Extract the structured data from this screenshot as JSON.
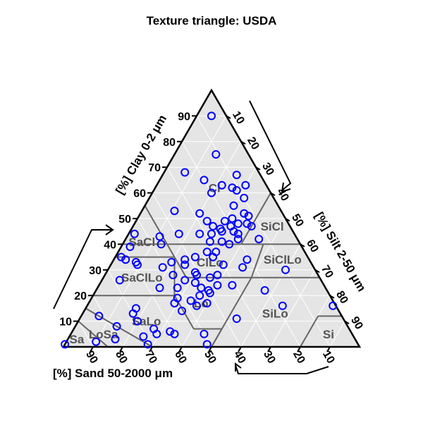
{
  "chart_data": {
    "type": "scatter",
    "subtype": "ternary",
    "title": "Texture triangle: USDA",
    "axes": {
      "clay": {
        "label": "[%] Clay 0-2 μm",
        "ticks": [
          10,
          20,
          30,
          40,
          50,
          60,
          70,
          80,
          90
        ]
      },
      "silt": {
        "label": "[%] Silt 2-50 μm",
        "ticks": [
          10,
          20,
          30,
          40,
          50,
          60,
          70,
          80,
          90
        ]
      },
      "sand": {
        "label": "[%] Sand 50-2000 μm",
        "ticks": [
          10,
          20,
          30,
          40,
          50,
          60,
          70,
          80,
          90
        ]
      }
    },
    "grid": true,
    "colors": {
      "background": "#e5e5e5",
      "grid": "#ffffff",
      "class_boundaries": "#666666",
      "class_labels": "#555555",
      "points": "#0000ff",
      "frame": "#000000"
    },
    "classes": [
      {
        "label": "Cl",
        "clay": 62,
        "silt": 20
      },
      {
        "label": "SiCl",
        "clay": 47,
        "silt": 47
      },
      {
        "label": "SaCl",
        "clay": 41,
        "silt": 6
      },
      {
        "label": "SiClLo",
        "clay": 34,
        "silt": 57
      },
      {
        "label": "ClLo",
        "clay": 33,
        "silt": 33
      },
      {
        "label": "SaClLo",
        "clay": 27,
        "silt": 13
      },
      {
        "label": "Lo",
        "clay": 17,
        "silt": 38
      },
      {
        "label": "SiLo",
        "clay": 13,
        "silt": 65
      },
      {
        "label": "SaLo",
        "clay": 10,
        "silt": 23
      },
      {
        "label": "LoSa",
        "clay": 5,
        "silt": 11
      },
      {
        "label": "Sa",
        "clay": 3,
        "silt": 3
      },
      {
        "label": "Si",
        "clay": 5,
        "silt": 87
      }
    ],
    "points": [
      {
        "clay": 90,
        "silt": 5
      },
      {
        "clay": 75,
        "silt": 14
      },
      {
        "clay": 68,
        "silt": 7
      },
      {
        "clay": 65,
        "silt": 15
      },
      {
        "clay": 63,
        "silt": 22
      },
      {
        "clay": 67,
        "silt": 25
      },
      {
        "clay": 63,
        "silt": 30
      },
      {
        "clay": 62,
        "silt": 26
      },
      {
        "clay": 60,
        "silt": 20
      },
      {
        "clay": 61,
        "silt": 28
      },
      {
        "clay": 58,
        "silt": 32
      },
      {
        "clay": 55,
        "silt": 30
      },
      {
        "clay": 53,
        "silt": 11
      },
      {
        "clay": 52,
        "silt": 20
      },
      {
        "clay": 50,
        "silt": 32
      },
      {
        "clay": 52,
        "silt": 35
      },
      {
        "clay": 51,
        "silt": 37
      },
      {
        "clay": 49,
        "silt": 30
      },
      {
        "clay": 49,
        "silt": 24
      },
      {
        "clay": 48,
        "silt": 35
      },
      {
        "clay": 48,
        "silt": 38
      },
      {
        "clay": 47,
        "silt": 27
      },
      {
        "clay": 47,
        "silt": 40
      },
      {
        "clay": 47,
        "silt": 33
      },
      {
        "clay": 46,
        "silt": 30
      },
      {
        "clay": 45,
        "silt": 31
      },
      {
        "clay": 45,
        "silt": 35
      },
      {
        "clay": 44,
        "silt": 37
      },
      {
        "clay": 44,
        "silt": 28
      },
      {
        "clay": 44,
        "silt": 24
      },
      {
        "clay": 44,
        "silt": 17
      },
      {
        "clay": 44,
        "silt": 2
      },
      {
        "clay": 43,
        "silt": 11
      },
      {
        "clay": 42,
        "silt": 45
      },
      {
        "clay": 42,
        "silt": 38
      },
      {
        "clay": 41,
        "silt": 33
      },
      {
        "clay": 41,
        "silt": 29
      },
      {
        "clay": 40,
        "silt": 36
      },
      {
        "clay": 40,
        "silt": 13
      },
      {
        "clay": 39,
        "silt": 3
      },
      {
        "clay": 37,
        "silt": 33
      },
      {
        "clay": 37,
        "silt": 30
      },
      {
        "clay": 35,
        "silt": 27
      },
      {
        "clay": 35,
        "silt": 33
      },
      {
        "clay": 35,
        "silt": 2
      },
      {
        "clay": 34,
        "silt": 4
      },
      {
        "clay": 34,
        "silt": 24
      },
      {
        "clay": 34,
        "silt": 45
      },
      {
        "clay": 33,
        "silt": 8
      },
      {
        "clay": 33,
        "silt": 20
      },
      {
        "clay": 32,
        "silt": 9
      },
      {
        "clay": 32,
        "silt": 25
      },
      {
        "clay": 32,
        "silt": 38
      },
      {
        "clay": 31,
        "silt": 18
      },
      {
        "clay": 31,
        "silt": 45
      },
      {
        "clay": 30,
        "silt": 60
      },
      {
        "clay": 29,
        "silt": 30
      },
      {
        "clay": 28,
        "silt": 23
      },
      {
        "clay": 28,
        "silt": 38
      },
      {
        "clay": 28,
        "silt": 31
      },
      {
        "clay": 27,
        "silt": 36
      },
      {
        "clay": 26,
        "silt": 6
      },
      {
        "clay": 26,
        "silt": 28
      },
      {
        "clay": 25,
        "silt": 32
      },
      {
        "clay": 24,
        "silt": 40
      },
      {
        "clay": 24,
        "silt": 45
      },
      {
        "clay": 23,
        "silt": 21
      },
      {
        "clay": 23,
        "silt": 35
      },
      {
        "clay": 23,
        "silt": 27
      },
      {
        "clay": 22,
        "silt": 38
      },
      {
        "clay": 22,
        "silt": 57
      },
      {
        "clay": 21,
        "silt": 39
      },
      {
        "clay": 20,
        "silt": 36
      },
      {
        "clay": 19,
        "silt": 29
      },
      {
        "clay": 18,
        "silt": 34
      },
      {
        "clay": 17,
        "silt": 40
      },
      {
        "clay": 17,
        "silt": 29
      },
      {
        "clay": 16,
        "silt": 37
      },
      {
        "clay": 16,
        "silt": 66
      },
      {
        "clay": 16,
        "silt": 83
      },
      {
        "clay": 15,
        "silt": 17
      },
      {
        "clay": 14,
        "silt": 33
      },
      {
        "clay": 13,
        "silt": 17
      },
      {
        "clay": 12,
        "silt": 6
      },
      {
        "clay": 11,
        "silt": 53
      },
      {
        "clay": 10,
        "silt": 20
      },
      {
        "clay": 8,
        "silt": 14
      },
      {
        "clay": 7,
        "silt": 27
      },
      {
        "clay": 6,
        "silt": 33
      },
      {
        "clay": 5,
        "silt": 45
      },
      {
        "clay": 5,
        "silt": 35
      },
      {
        "clay": 5,
        "silt": 29
      },
      {
        "clay": 4,
        "silt": 25
      },
      {
        "clay": 3,
        "silt": 16
      },
      {
        "clay": 2,
        "silt": 10
      },
      {
        "clay": 1,
        "silt": 28
      },
      {
        "clay": 1,
        "silt": 48
      },
      {
        "clay": 1,
        "silt": 0
      }
    ]
  }
}
